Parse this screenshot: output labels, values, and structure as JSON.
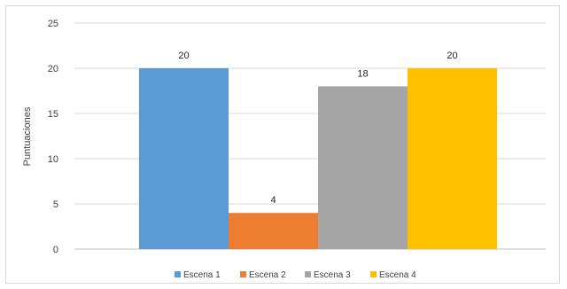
{
  "chart_data": {
    "type": "bar",
    "title": "",
    "xlabel": "",
    "ylabel": "Puntuaciones",
    "ylim": [
      0,
      25
    ],
    "yticks": [
      0,
      5,
      10,
      15,
      20,
      25
    ],
    "grid": true,
    "legend_position": "bottom",
    "series": [
      {
        "name": "Escena 1",
        "value": 20,
        "color": "#5b9bd5"
      },
      {
        "name": "Escena 2",
        "value": 4,
        "color": "#ed7d31"
      },
      {
        "name": "Escena 3",
        "value": 18,
        "color": "#a5a5a5"
      },
      {
        "name": "Escena 4",
        "value": 20,
        "color": "#ffc000"
      }
    ]
  }
}
